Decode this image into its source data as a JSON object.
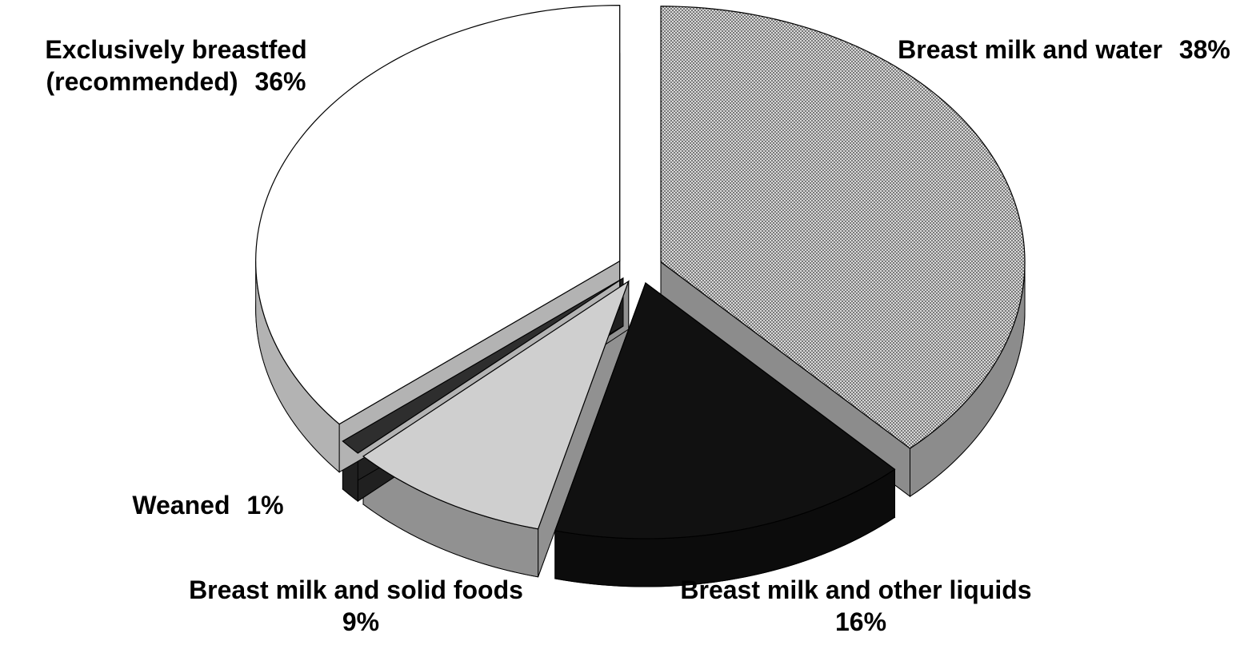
{
  "chart_data": {
    "type": "pie",
    "categories": [
      "Breast milk and water",
      "Breast milk and other liquids",
      "Breast milk and solid foods",
      "Weaned",
      "Exclusively breastfed (recommended)"
    ],
    "values": [
      38,
      16,
      9,
      1,
      36
    ],
    "value_labels": [
      "38%",
      "16%",
      "9%",
      "1%",
      "36%"
    ],
    "colors": [
      "#b0b0b0",
      "#111111",
      "#cfcfcf",
      "#2e2e2e",
      "#ffffff"
    ]
  }
}
